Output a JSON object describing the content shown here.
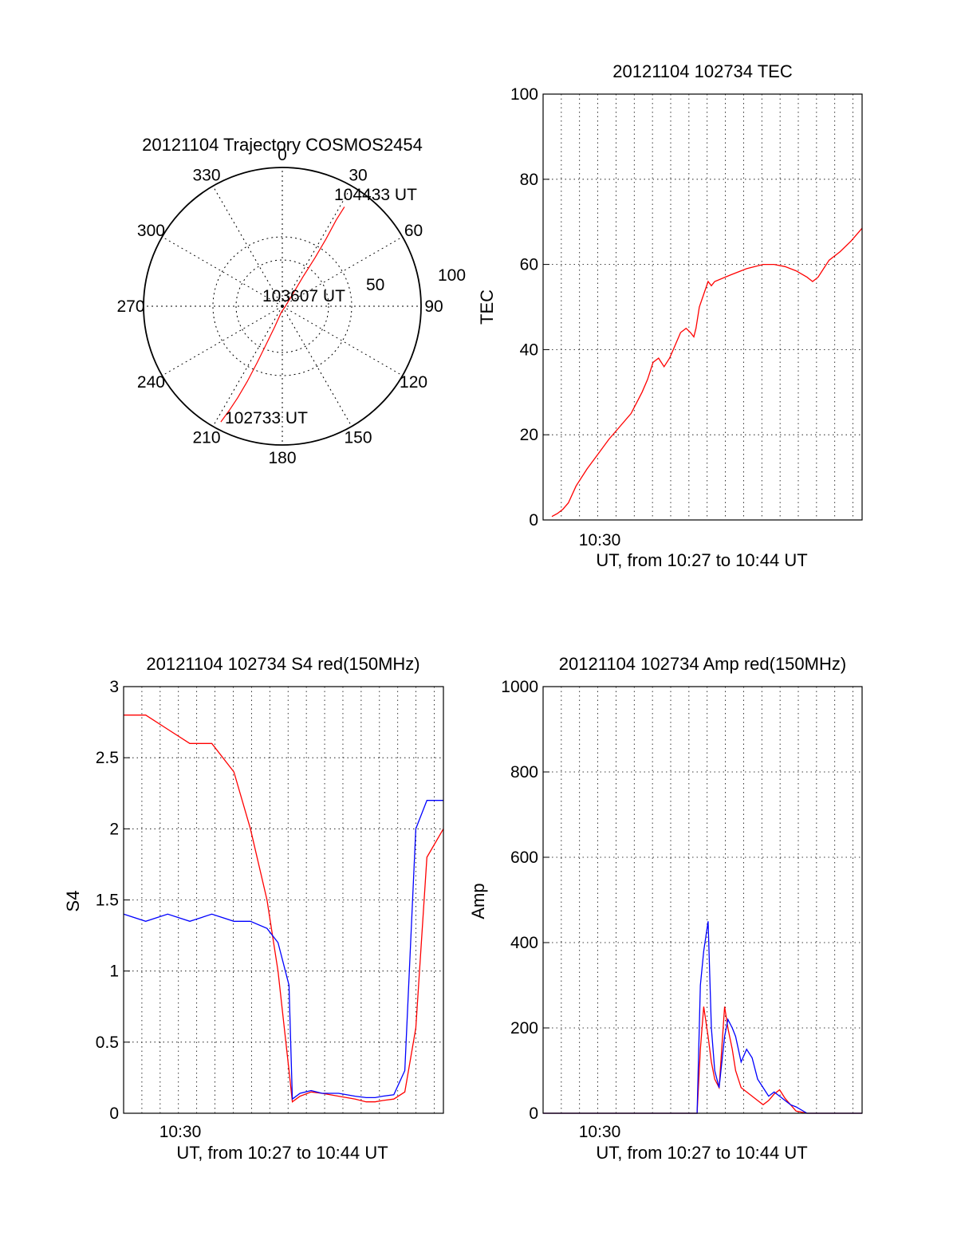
{
  "colors": {
    "red": "#ff0000",
    "blue": "#0000ff",
    "axis": "#000000"
  },
  "chart_data": [
    {
      "id": "trajectory",
      "type": "polar",
      "title": "20121104 Trajectory COSMOS2454",
      "azimuth_labels": [
        "0",
        "30",
        "60",
        "90",
        "120",
        "150",
        "180",
        "210",
        "240",
        "270",
        "300",
        "330"
      ],
      "radial_labels": [
        "50",
        "100"
      ],
      "point_labels": {
        "start": "102733 UT",
        "mid": "103607 UT",
        "end": "104433 UT"
      },
      "track": [
        {
          "az": 208,
          "el": 5
        },
        {
          "az": 207,
          "el": 14
        },
        {
          "az": 206,
          "el": 24
        },
        {
          "az": 205,
          "el": 36
        },
        {
          "az": 204,
          "el": 50
        },
        {
          "az": 203,
          "el": 63
        },
        {
          "az": 200,
          "el": 76
        },
        {
          "az": 190,
          "el": 86
        },
        {
          "az": 90,
          "el": 88
        },
        {
          "az": 40,
          "el": 79
        },
        {
          "az": 35,
          "el": 66
        },
        {
          "az": 34,
          "el": 52
        },
        {
          "az": 33,
          "el": 38
        },
        {
          "az": 32,
          "el": 24
        },
        {
          "az": 32,
          "el": 14
        }
      ]
    },
    {
      "id": "tec",
      "type": "line",
      "title": "20121104 102734 TEC",
      "ylabel": "TEC",
      "xlabel": "UT, from 10:27 to 10:44 UT",
      "xtick_label": "10:30",
      "xlim": [
        10.45,
        10.74
      ],
      "ylim": [
        0,
        100
      ],
      "yticks": [
        0,
        20,
        40,
        60,
        80,
        100
      ],
      "series": [
        {
          "color": "#ff0000",
          "x": [
            10.458,
            10.463,
            10.468,
            10.473,
            10.48,
            10.49,
            10.5,
            10.51,
            10.52,
            10.53,
            10.54,
            10.545,
            10.55,
            10.555,
            10.56,
            10.565,
            10.57,
            10.575,
            10.58,
            10.584,
            10.587,
            10.589,
            10.592,
            10.596,
            10.6,
            10.603,
            10.606,
            10.62,
            10.635,
            10.65,
            10.66,
            10.67,
            10.68,
            10.69,
            10.695,
            10.7,
            10.705,
            10.71,
            10.72,
            10.73,
            10.74
          ],
          "y": [
            0.8,
            1.5,
            2.5,
            4,
            8,
            12,
            15.5,
            19,
            22,
            25,
            30,
            33,
            37,
            38,
            36,
            38,
            41,
            44,
            45,
            44,
            43,
            45,
            50,
            53,
            56,
            55,
            56,
            57.5,
            59,
            60,
            60,
            59.5,
            58.5,
            57,
            56,
            57,
            59,
            61,
            63,
            65.5,
            68.5
          ]
        }
      ]
    },
    {
      "id": "s4",
      "type": "line",
      "title": "20121104 102734 S4 red(150MHz)",
      "ylabel": "S4",
      "xlabel": "UT, from 10:27 to 10:44 UT",
      "xtick_label": "10:30",
      "xlim": [
        10.45,
        10.74
      ],
      "ylim": [
        0,
        3
      ],
      "yticks": [
        0,
        0.5,
        1,
        1.5,
        2,
        2.5,
        3
      ],
      "ytick_labels": [
        "0",
        "0.5",
        "1",
        "1.5",
        "2",
        "2.5",
        "3"
      ],
      "series": [
        {
          "color": "#ff0000",
          "x": [
            10.45,
            10.47,
            10.49,
            10.51,
            10.53,
            10.55,
            10.565,
            10.58,
            10.59,
            10.6,
            10.603,
            10.61,
            10.62,
            10.63,
            10.645,
            10.66,
            10.67,
            10.678,
            10.685,
            10.695,
            10.705,
            10.715,
            10.725,
            10.74
          ],
          "y": [
            2.8,
            2.8,
            2.7,
            2.6,
            2.6,
            2.4,
            2.0,
            1.5,
            1.0,
            0.3,
            0.08,
            0.12,
            0.15,
            0.14,
            0.12,
            0.1,
            0.08,
            0.08,
            0.09,
            0.1,
            0.15,
            0.6,
            1.8,
            2.0
          ]
        },
        {
          "color": "#0000ff",
          "x": [
            10.45,
            10.47,
            10.49,
            10.51,
            10.53,
            10.55,
            10.565,
            10.58,
            10.59,
            10.6,
            10.603,
            10.61,
            10.62,
            10.63,
            10.645,
            10.66,
            10.67,
            10.678,
            10.685,
            10.695,
            10.705,
            10.715,
            10.725,
            10.74
          ],
          "y": [
            1.4,
            1.35,
            1.4,
            1.35,
            1.4,
            1.35,
            1.35,
            1.3,
            1.2,
            0.9,
            0.1,
            0.14,
            0.16,
            0.14,
            0.14,
            0.12,
            0.11,
            0.11,
            0.12,
            0.13,
            0.3,
            2.0,
            2.2,
            2.2
          ]
        }
      ]
    },
    {
      "id": "amp",
      "type": "line",
      "title": "20121104 102734 Amp red(150MHz)",
      "ylabel": "Amp",
      "xlabel": "UT, from 10:27 to 10:44 UT",
      "xtick_label": "10:30",
      "xlim": [
        10.45,
        10.74
      ],
      "ylim": [
        0,
        1000
      ],
      "yticks": [
        0,
        200,
        400,
        600,
        800,
        1000
      ],
      "series": [
        {
          "color": "#ff0000",
          "x": [
            10.45,
            10.59,
            10.593,
            10.596,
            10.6,
            10.603,
            10.606,
            10.61,
            10.615,
            10.618,
            10.622,
            10.625,
            10.63,
            10.635,
            10.64,
            10.645,
            10.65,
            10.655,
            10.66,
            10.665,
            10.67,
            10.675,
            10.68,
            10.69,
            10.7,
            10.74
          ],
          "y": [
            0,
            0,
            150,
            250,
            180,
            120,
            80,
            60,
            250,
            200,
            150,
            100,
            60,
            50,
            40,
            30,
            20,
            30,
            45,
            55,
            35,
            20,
            5,
            0,
            0,
            0
          ]
        },
        {
          "color": "#0000ff",
          "x": [
            10.45,
            10.59,
            10.593,
            10.596,
            10.6,
            10.603,
            10.606,
            10.61,
            10.615,
            10.618,
            10.622,
            10.625,
            10.63,
            10.635,
            10.64,
            10.645,
            10.65,
            10.655,
            10.66,
            10.665,
            10.67,
            10.675,
            10.68,
            10.69,
            10.7,
            10.74
          ],
          "y": [
            0,
            0,
            300,
            380,
            450,
            200,
            100,
            60,
            180,
            220,
            200,
            180,
            120,
            150,
            130,
            80,
            60,
            40,
            50,
            40,
            30,
            20,
            15,
            0,
            0,
            0
          ]
        }
      ]
    }
  ]
}
